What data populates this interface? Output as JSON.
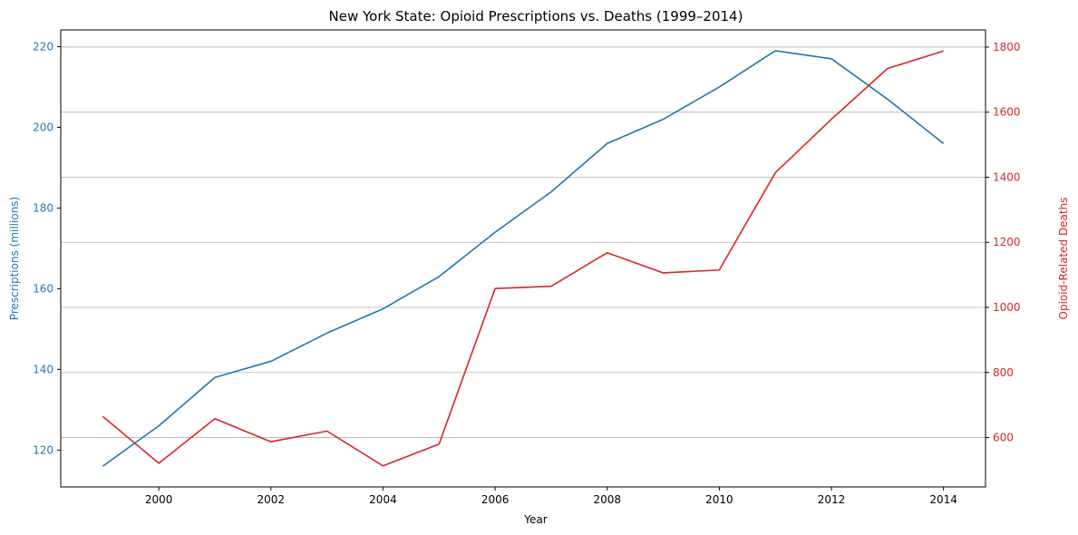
{
  "chart_data": {
    "type": "line",
    "title": "New York State: Opioid Prescriptions vs. Deaths (1999–2014)",
    "xlabel": "Year",
    "x": [
      1999,
      2000,
      2001,
      2002,
      2003,
      2004,
      2005,
      2006,
      2007,
      2008,
      2009,
      2010,
      2011,
      2012,
      2013,
      2014
    ],
    "xlim": [
      1998.25,
      2014.75
    ],
    "x_ticks": [
      "2000",
      "2002",
      "2004",
      "2006",
      "2008",
      "2010",
      "2012",
      "2014"
    ],
    "grid": "horizontal lines at right-axis ticks",
    "series": [
      {
        "name": "Prescriptions (millions)",
        "axis": "left",
        "color": "#1f77b4",
        "values": [
          116,
          126,
          138,
          142,
          149,
          155,
          163,
          174,
          184,
          196,
          202,
          210,
          219,
          217,
          207,
          196
        ]
      },
      {
        "name": "Opioid-Related Deaths",
        "axis": "right",
        "color": "#d62728",
        "values": [
          665,
          521,
          658,
          587,
          620,
          513,
          580,
          1058,
          1065,
          1168,
          1106,
          1115,
          1414,
          1578,
          1734,
          1788
        ]
      }
    ],
    "y_left": {
      "label": "Prescriptions (millions)",
      "color": "#1f77b4",
      "ylim": [
        110.85,
        224.15
      ],
      "ticks": [
        "120",
        "140",
        "160",
        "180",
        "200",
        "220"
      ]
    },
    "y_right": {
      "label": "Opioid-Related Deaths",
      "color": "#d62728",
      "ylim": [
        448.25,
        1852.75
      ],
      "ticks": [
        "600",
        "800",
        "1000",
        "1200",
        "1400",
        "1600",
        "1800"
      ]
    }
  }
}
